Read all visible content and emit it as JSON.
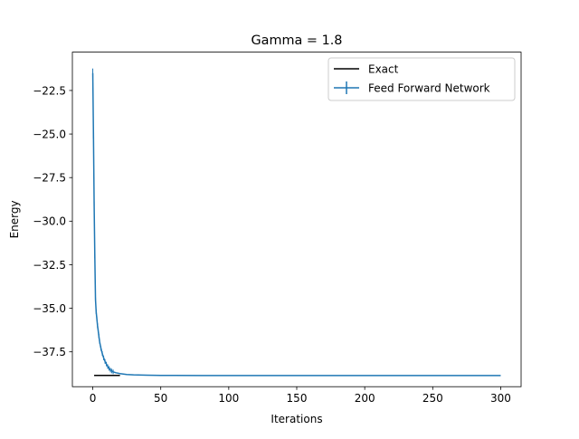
{
  "chart_data": {
    "type": "line",
    "title": "Gamma = 1.8",
    "xlabel": "Iterations",
    "ylabel": "Energy",
    "xlim": [
      -15,
      315
    ],
    "ylim": [
      -39.5,
      -20.3
    ],
    "xticks": [
      0,
      50,
      100,
      150,
      200,
      250,
      300
    ],
    "xtick_labels": [
      "0",
      "50",
      "100",
      "150",
      "200",
      "250",
      "300"
    ],
    "yticks": [
      -22.5,
      -25.0,
      -27.5,
      -30.0,
      -32.5,
      -35.0,
      -37.5
    ],
    "ytick_labels": [
      "−22.5",
      "−25.0",
      "−27.5",
      "−30.0",
      "−32.5",
      "−35.0",
      "−37.5"
    ],
    "legend_position": "top-right",
    "grid": false,
    "series": [
      {
        "name": "Exact",
        "color": "#000000",
        "x": [
          1,
          20
        ],
        "y": [
          -38.85,
          -38.85
        ]
      },
      {
        "name": "Feed Forward Network",
        "color": "#1f77b4",
        "errorbars": true,
        "x": [
          0,
          0.5,
          1,
          1.5,
          2,
          2.5,
          3,
          3.5,
          4,
          4.5,
          5,
          6,
          7,
          8,
          9,
          10,
          11,
          12,
          13,
          14,
          15,
          17,
          20,
          25,
          30,
          40,
          50,
          60,
          80,
          100,
          130,
          150,
          175,
          200,
          225,
          250,
          275,
          300
        ],
        "y": [
          -21.5,
          -25.0,
          -29.0,
          -32.0,
          -34.5,
          -35.2,
          -35.6,
          -36.0,
          -36.3,
          -36.6,
          -36.9,
          -37.3,
          -37.6,
          -37.85,
          -38.05,
          -38.2,
          -38.35,
          -38.45,
          -38.55,
          -38.6,
          -38.65,
          -38.7,
          -38.75,
          -38.8,
          -38.82,
          -38.84,
          -38.85,
          -38.85,
          -38.86,
          -38.86,
          -38.86,
          -38.86,
          -38.86,
          -38.86,
          -38.86,
          -38.86,
          -38.86,
          -38.86
        ]
      }
    ]
  }
}
